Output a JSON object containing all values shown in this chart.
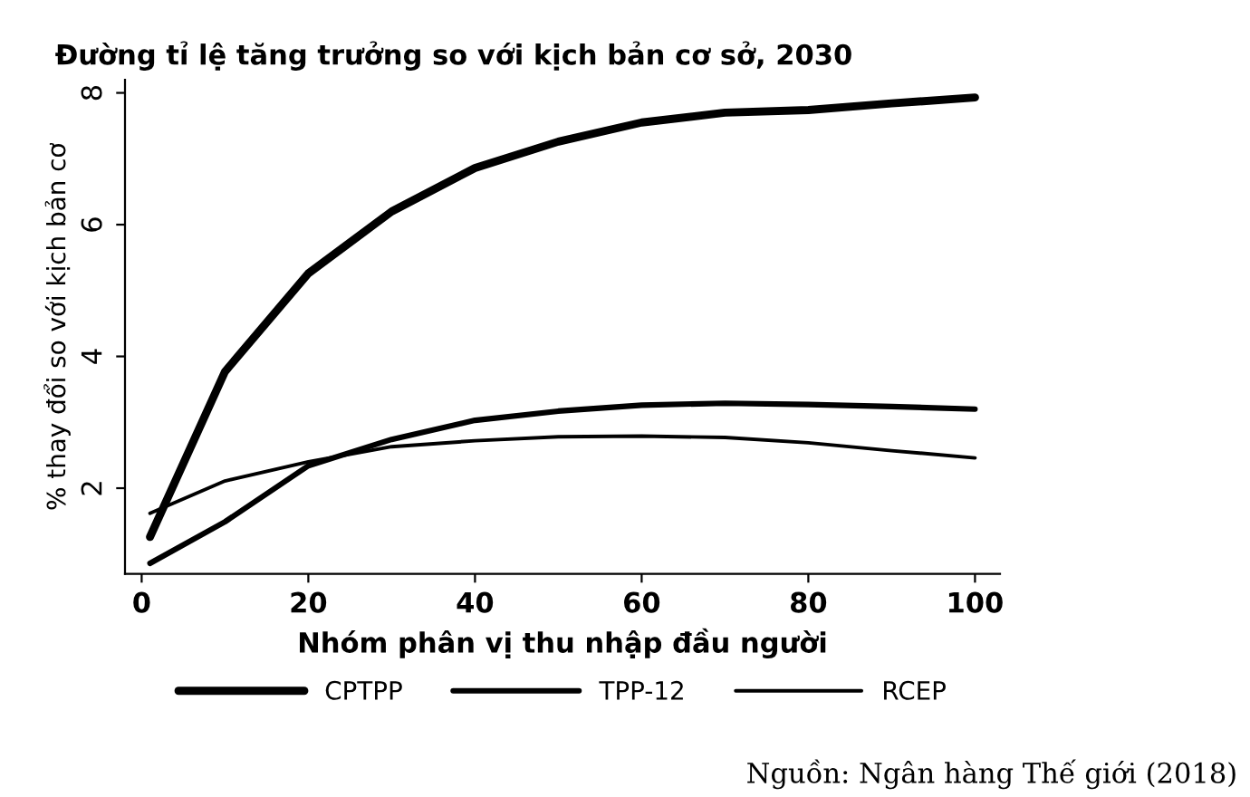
{
  "chart_data": {
    "type": "line",
    "title": "Đường tỉ lệ tăng trưởng so với kịch bản cơ sở, 2030",
    "xlabel": "Nhóm phân vị thu nhập đầu người",
    "ylabel": "% thay đổi so với kịch bản cơ",
    "x": [
      1,
      10,
      20,
      30,
      40,
      50,
      60,
      70,
      80,
      90,
      100
    ],
    "series": [
      {
        "name": "CPTPP",
        "color": "#000000",
        "values": [
          1.26,
          3.77,
          5.26,
          6.2,
          6.86,
          7.26,
          7.55,
          7.7,
          7.74,
          7.84,
          7.93
        ]
      },
      {
        "name": "TPP-12",
        "color": "#000000",
        "values": [
          0.86,
          1.49,
          2.34,
          2.74,
          3.03,
          3.17,
          3.26,
          3.29,
          3.27,
          3.24,
          3.2
        ]
      },
      {
        "name": "RCEP",
        "color": "#000000",
        "values": [
          1.62,
          2.11,
          2.4,
          2.63,
          2.72,
          2.78,
          2.79,
          2.77,
          2.69,
          2.57,
          2.46
        ]
      }
    ],
    "xlim": [
      -2,
      103
    ],
    "ylim": [
      0.7,
      8.2
    ],
    "xticks": [
      0,
      20,
      40,
      60,
      80,
      100
    ],
    "yticks": [
      2,
      4,
      6,
      8
    ],
    "grid": false,
    "legend": "bottom",
    "marker": "none",
    "line_style": "solid",
    "annotations": [
      "Nguồn: Ngân hàng Thế giới (2018)"
    ]
  }
}
